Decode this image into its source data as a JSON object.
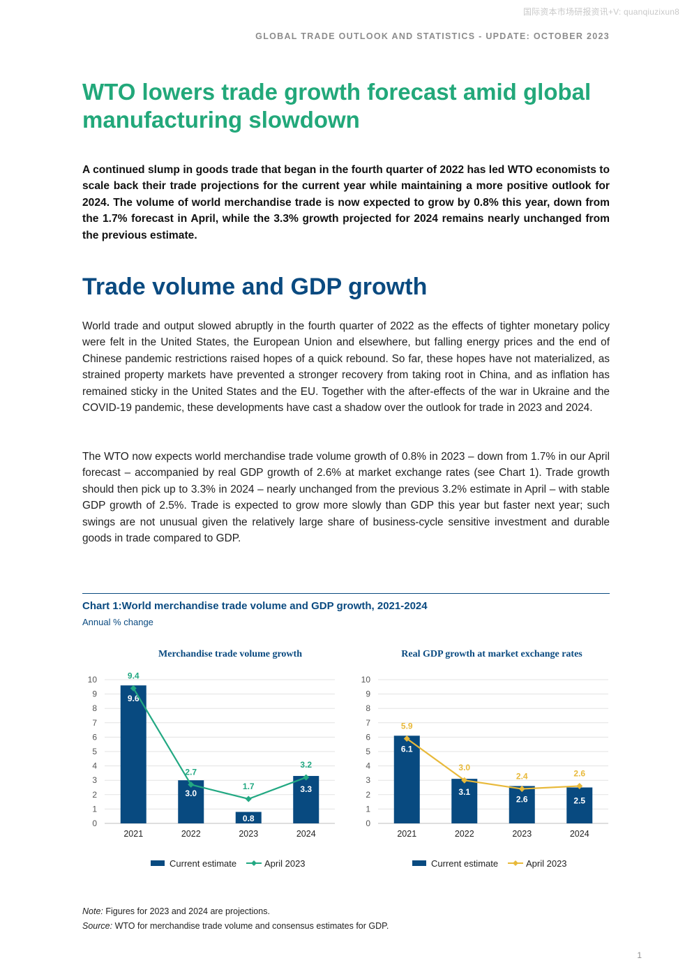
{
  "watermark": "国际资本市场研报资讯+V: quanqiuzixun8",
  "running_header": "GLOBAL TRADE OUTLOOK AND STATISTICS - UPDATE: OCTOBER 2023",
  "title": "WTO lowers trade growth forecast amid global manufacturing slowdown",
  "lead": "A continued slump in goods trade that began in the fourth quarter of 2022 has led WTO economists to scale back their trade projections for the current year while maintaining a more positive outlook for 2024. The volume of world merchandise trade is now expected to grow by 0.8% this year, down from the 1.7% forecast in April, while the 3.3% growth projected for 2024 remains nearly unchanged from the previous estimate.",
  "section_heading": "Trade volume and GDP growth",
  "paragraph1": "World trade and output slowed abruptly in the fourth quarter of 2022 as the effects of tighter monetary policy were felt in the United States, the European Union and elsewhere, but falling energy prices and the end of Chinese pandemic restrictions raised hopes of a quick rebound. So far, these hopes have not materialized, as strained property markets have prevented a stronger recovery from taking root in China, and as inflation has remained sticky in the United States and the EU. Together with the after-effects of the war in Ukraine and the COVID-19 pandemic, these developments have cast a shadow over the outlook for trade in 2023 and 2024.",
  "paragraph2": "The WTO now expects world merchandise trade volume growth of 0.8% in 2023 – down from 1.7% in our April forecast – accompanied by real GDP growth of 2.6% at market exchange rates (see Chart 1). Trade growth should then pick up to 3.3% in 2024 – nearly unchanged from the previous 3.2% estimate in April – with stable GDP growth of 2.5%. Trade is expected to grow more slowly than GDP this year but faster next year; such swings are not unusual given the relatively large share of business-cycle sensitive investment and durable goods in trade compared to GDP.",
  "chart_heading": "Chart 1:World merchandise trade volume and GDP growth, 2021-2024",
  "chart_subheading": "Annual % change",
  "chart_data": [
    {
      "type": "bar",
      "title": "Merchandise trade volume growth",
      "categories": [
        "2021",
        "2022",
        "2023",
        "2024"
      ],
      "ylim": [
        0,
        10
      ],
      "yticks": [
        0,
        1,
        2,
        3,
        4,
        5,
        6,
        7,
        8,
        9,
        10
      ],
      "grid": true,
      "legend": "bottom",
      "series": [
        {
          "name": "Current estimate",
          "kind": "bar",
          "color": "#084a80",
          "values": [
            9.6,
            3.0,
            0.8,
            3.3
          ]
        },
        {
          "name": "April 2023",
          "kind": "line",
          "marker": "diamond",
          "color": "#22a882",
          "values": [
            9.4,
            2.7,
            1.7,
            3.2
          ]
        }
      ]
    },
    {
      "type": "bar",
      "title": "Real GDP growth at market exchange rates",
      "categories": [
        "2021",
        "2022",
        "2023",
        "2024"
      ],
      "ylim": [
        0,
        10
      ],
      "yticks": [
        0,
        1,
        2,
        3,
        4,
        5,
        6,
        7,
        8,
        9,
        10
      ],
      "grid": true,
      "legend": "bottom",
      "series": [
        {
          "name": "Current estimate",
          "kind": "bar",
          "color": "#084a80",
          "values": [
            6.1,
            3.1,
            2.6,
            2.5
          ]
        },
        {
          "name": "April 2023",
          "kind": "line",
          "marker": "diamond",
          "color": "#e8b93a",
          "values": [
            5.9,
            3.0,
            2.4,
            2.6
          ]
        }
      ]
    }
  ],
  "note_label": "Note:",
  "note_text": " Figures for 2023 and 2024 are projections.",
  "source_label": "Source:",
  "source_text": " WTO for merchandise trade volume and consensus estimates for GDP.",
  "page_number": "1"
}
